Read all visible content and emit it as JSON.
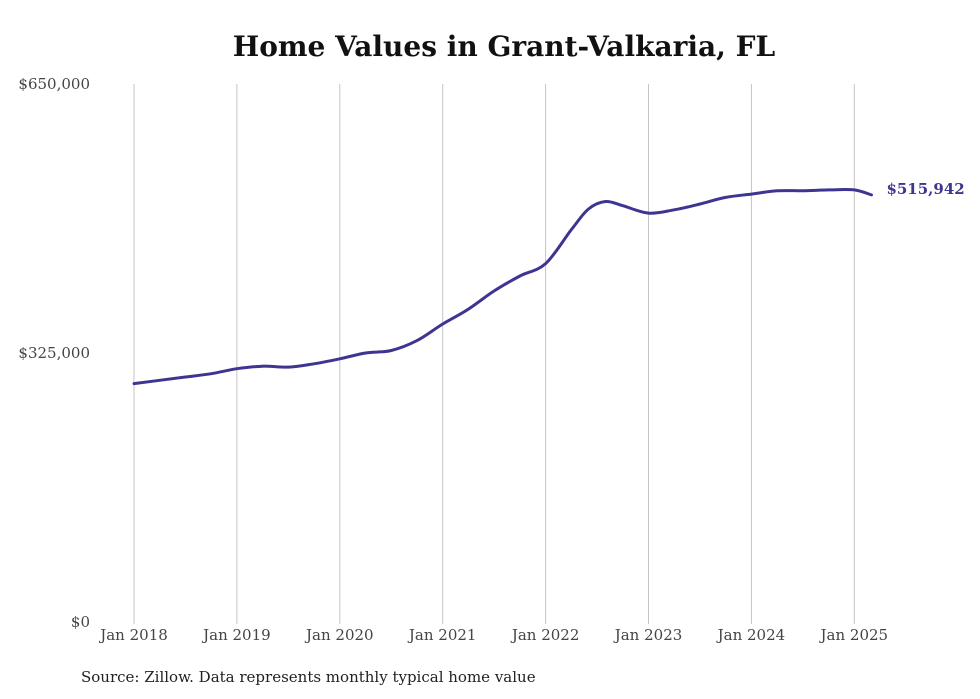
{
  "chart_data": {
    "type": "line",
    "title": "Home Values in Grant-Valkaria, FL",
    "xlabel": "",
    "ylabel": "",
    "ylim": [
      0,
      650000
    ],
    "yticks": [
      {
        "value": 0,
        "label": "$0"
      },
      {
        "value": 325000,
        "label": "$325,000"
      },
      {
        "value": 650000,
        "label": "$650,000"
      }
    ],
    "xticks": [
      {
        "value": "2018-01",
        "label": "Jan 2018"
      },
      {
        "value": "2019-01",
        "label": "Jan 2019"
      },
      {
        "value": "2020-01",
        "label": "Jan 2020"
      },
      {
        "value": "2021-01",
        "label": "Jan 2021"
      },
      {
        "value": "2022-01",
        "label": "Jan 2022"
      },
      {
        "value": "2023-01",
        "label": "Jan 2023"
      },
      {
        "value": "2024-01",
        "label": "Jan 2024"
      },
      {
        "value": "2025-01",
        "label": "Jan 2025"
      }
    ],
    "grid": {
      "vertical": true,
      "horizontal": false
    },
    "color": "#3d3591",
    "end_label": "$515,942",
    "series": [
      {
        "points": [
          {
            "x": "2018-01",
            "y": 288000
          },
          {
            "x": "2018-04",
            "y": 292000
          },
          {
            "x": "2018-07",
            "y": 296000
          },
          {
            "x": "2018-10",
            "y": 300000
          },
          {
            "x": "2019-01",
            "y": 306000
          },
          {
            "x": "2019-04",
            "y": 309000
          },
          {
            "x": "2019-07",
            "y": 308000
          },
          {
            "x": "2019-10",
            "y": 312000
          },
          {
            "x": "2020-01",
            "y": 318000
          },
          {
            "x": "2020-04",
            "y": 325000
          },
          {
            "x": "2020-07",
            "y": 328000
          },
          {
            "x": "2020-10",
            "y": 340000
          },
          {
            "x": "2021-01",
            "y": 360000
          },
          {
            "x": "2021-04",
            "y": 378000
          },
          {
            "x": "2021-07",
            "y": 400000
          },
          {
            "x": "2021-10",
            "y": 418000
          },
          {
            "x": "2022-01",
            "y": 433000
          },
          {
            "x": "2022-04",
            "y": 474000
          },
          {
            "x": "2022-06",
            "y": 499000
          },
          {
            "x": "2022-08",
            "y": 508000
          },
          {
            "x": "2022-10",
            "y": 503000
          },
          {
            "x": "2023-01",
            "y": 494000
          },
          {
            "x": "2023-04",
            "y": 498000
          },
          {
            "x": "2023-07",
            "y": 505000
          },
          {
            "x": "2023-10",
            "y": 513000
          },
          {
            "x": "2024-01",
            "y": 517000
          },
          {
            "x": "2024-04",
            "y": 521000
          },
          {
            "x": "2024-07",
            "y": 521000
          },
          {
            "x": "2024-10",
            "y": 522000
          },
          {
            "x": "2025-01",
            "y": 522000
          },
          {
            "x": "2025-03",
            "y": 516000
          }
        ]
      }
    ],
    "source": "Source: Zillow. Data represents monthly typical home value"
  }
}
